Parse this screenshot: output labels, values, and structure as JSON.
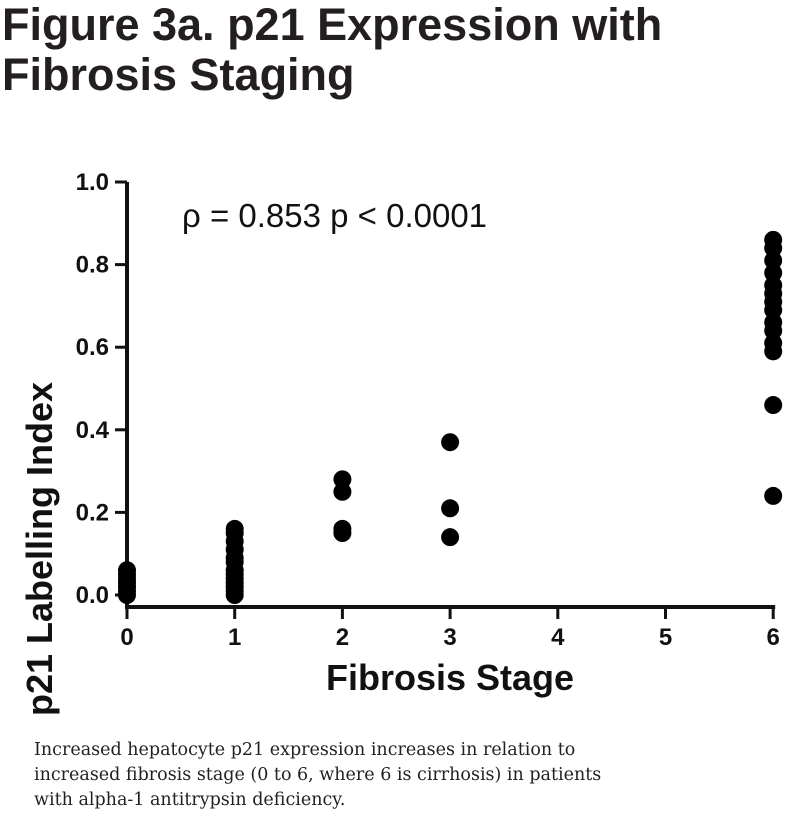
{
  "figure": {
    "title_line1": "Figure 3a.  p21 Expression with",
    "title_line2": "Fibrosis Staging"
  },
  "caption": {
    "line1": "Increased hepatocyte p21 expression increases in relation to",
    "line2": "increased fibrosis stage (0 to 6, where 6 is cirrhosis) in patients",
    "line3": "with alpha-1 antitrypsin deficiency."
  },
  "chart_data": {
    "type": "scatter",
    "title": "",
    "xlabel": "Fibrosis Stage",
    "ylabel": "p21 Labelling Index",
    "x_ticks": [
      "0",
      "1",
      "2",
      "3",
      "4",
      "5",
      "6"
    ],
    "y_ticks": [
      "0.0",
      "0.2",
      "0.4",
      "0.6",
      "0.8",
      "1.0"
    ],
    "ylim": [
      0,
      1.0
    ],
    "grid": false,
    "marker_color": "#000000",
    "annotation": "ρ = 0.853   p  < 0.0001",
    "points": [
      {
        "x": 0,
        "y": 0.06
      },
      {
        "x": 0,
        "y": 0.05
      },
      {
        "x": 0,
        "y": 0.04
      },
      {
        "x": 0,
        "y": 0.03
      },
      {
        "x": 0,
        "y": 0.02
      },
      {
        "x": 0,
        "y": 0.01
      },
      {
        "x": 0,
        "y": 0.0
      },
      {
        "x": 1,
        "y": 0.16
      },
      {
        "x": 1,
        "y": 0.15
      },
      {
        "x": 1,
        "y": 0.13
      },
      {
        "x": 1,
        "y": 0.11
      },
      {
        "x": 1,
        "y": 0.09
      },
      {
        "x": 1,
        "y": 0.08
      },
      {
        "x": 1,
        "y": 0.06
      },
      {
        "x": 1,
        "y": 0.05
      },
      {
        "x": 1,
        "y": 0.04
      },
      {
        "x": 1,
        "y": 0.03
      },
      {
        "x": 1,
        "y": 0.02
      },
      {
        "x": 1,
        "y": 0.01
      },
      {
        "x": 1,
        "y": 0.0
      },
      {
        "x": 2,
        "y": 0.28
      },
      {
        "x": 2,
        "y": 0.25
      },
      {
        "x": 2,
        "y": 0.16
      },
      {
        "x": 2,
        "y": 0.15
      },
      {
        "x": 3,
        "y": 0.37
      },
      {
        "x": 3,
        "y": 0.21
      },
      {
        "x": 3,
        "y": 0.14
      },
      {
        "x": 6,
        "y": 0.86
      },
      {
        "x": 6,
        "y": 0.84
      },
      {
        "x": 6,
        "y": 0.81
      },
      {
        "x": 6,
        "y": 0.78
      },
      {
        "x": 6,
        "y": 0.75
      },
      {
        "x": 6,
        "y": 0.73
      },
      {
        "x": 6,
        "y": 0.71
      },
      {
        "x": 6,
        "y": 0.69
      },
      {
        "x": 6,
        "y": 0.66
      },
      {
        "x": 6,
        "y": 0.64
      },
      {
        "x": 6,
        "y": 0.61
      },
      {
        "x": 6,
        "y": 0.59
      },
      {
        "x": 6,
        "y": 0.46
      },
      {
        "x": 6,
        "y": 0.24
      }
    ]
  }
}
